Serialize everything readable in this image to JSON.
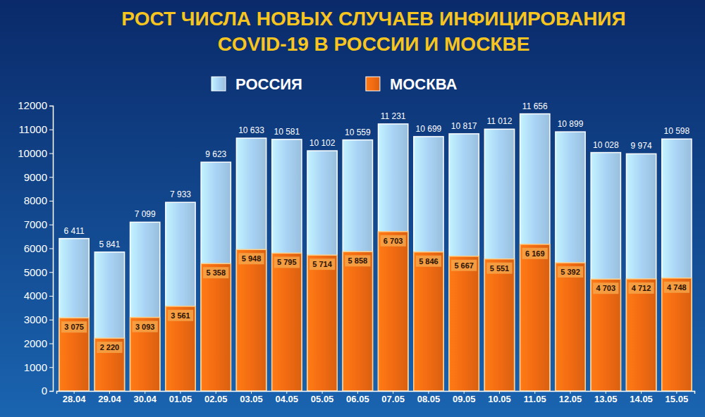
{
  "chart_data": {
    "type": "bar",
    "title": "РОСТ ЧИСЛА НОВЫХ СЛУЧАЕВ ИНФИЦИРОВАНИЯ COVID-19 В РОССИИ И МОСКВЕ",
    "categories": [
      "28.04",
      "29.04",
      "30.04",
      "01.05",
      "02.05",
      "03.05",
      "04.05",
      "05.05",
      "06.05",
      "07.05",
      "08.05",
      "09.05",
      "10.05",
      "11.05",
      "12.05",
      "13.05",
      "14.05",
      "15.05"
    ],
    "series": [
      {
        "name": "РОССИЯ",
        "color": "#a9d3f5",
        "values": [
          6411,
          5841,
          7099,
          7933,
          9623,
          10633,
          10581,
          10102,
          10559,
          11231,
          10699,
          10817,
          11012,
          11656,
          10899,
          10028,
          9974,
          10598
        ],
        "value_labels": [
          "6 411",
          "5 841",
          "7 099",
          "7 933",
          "9 623",
          "10 633",
          "10 581",
          "10 102",
          "10 559",
          "11 231",
          "10 699",
          "10 817",
          "11 012",
          "11 656",
          "10 899",
          "10 028",
          "9 974",
          "10 598"
        ]
      },
      {
        "name": "МОСКВА",
        "color": "#f26b12",
        "values": [
          3075,
          2220,
          3093,
          3561,
          5358,
          5948,
          5795,
          5714,
          5858,
          6703,
          5846,
          5667,
          5551,
          6169,
          5392,
          4703,
          4712,
          4748
        ],
        "value_labels": [
          "3 075",
          "2 220",
          "3 093",
          "3 561",
          "5 358",
          "5 948",
          "5 795",
          "5 714",
          "5 858",
          "6 703",
          "5 846",
          "5 667",
          "5 551",
          "6 169",
          "5 392",
          "4 703",
          "4 712",
          "4 748"
        ]
      }
    ],
    "ylim": [
      0,
      12000
    ],
    "yticks": [
      0,
      1000,
      2000,
      3000,
      4000,
      5000,
      6000,
      7000,
      8000,
      9000,
      10000,
      11000,
      12000
    ],
    "stacked": false,
    "data_labels": true,
    "grid": false,
    "legend": "top"
  }
}
